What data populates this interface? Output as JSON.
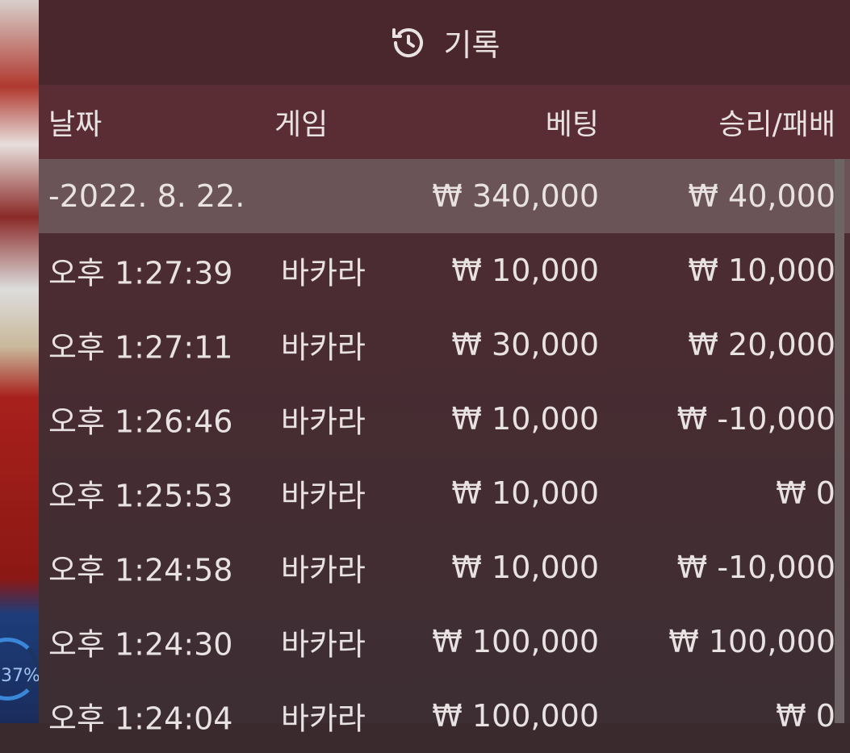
{
  "background": {
    "gauge_label": "37%"
  },
  "header": {
    "title": "기록",
    "icon": "history-icon"
  },
  "columns": [
    "날짜",
    "게임",
    "베팅",
    "승리/패배"
  ],
  "summary": {
    "date": "-2022. 8. 22.",
    "bet": "₩ 340,000",
    "result": "₩ 40,000"
  },
  "rows": [
    {
      "time": "오후 1:27:39",
      "game": "바카라",
      "bet": "₩ 10,000",
      "result": "₩ 10,000"
    },
    {
      "time": "오후 1:27:11",
      "game": "바카라",
      "bet": "₩ 30,000",
      "result": "₩ 20,000"
    },
    {
      "time": "오후 1:26:46",
      "game": "바카라",
      "bet": "₩ 10,000",
      "result": "₩ -10,000"
    },
    {
      "time": "오후 1:25:53",
      "game": "바카라",
      "bet": "₩ 10,000",
      "result": "₩ 0"
    },
    {
      "time": "오후 1:24:58",
      "game": "바카라",
      "bet": "₩ 10,000",
      "result": "₩ -10,000"
    },
    {
      "time": "오후 1:24:30",
      "game": "바카라",
      "bet": "₩ 100,000",
      "result": "₩ 100,000"
    },
    {
      "time": "오후 1:24:04",
      "game": "바카라",
      "bet": "₩ 100,000",
      "result": "₩ 0"
    }
  ]
}
